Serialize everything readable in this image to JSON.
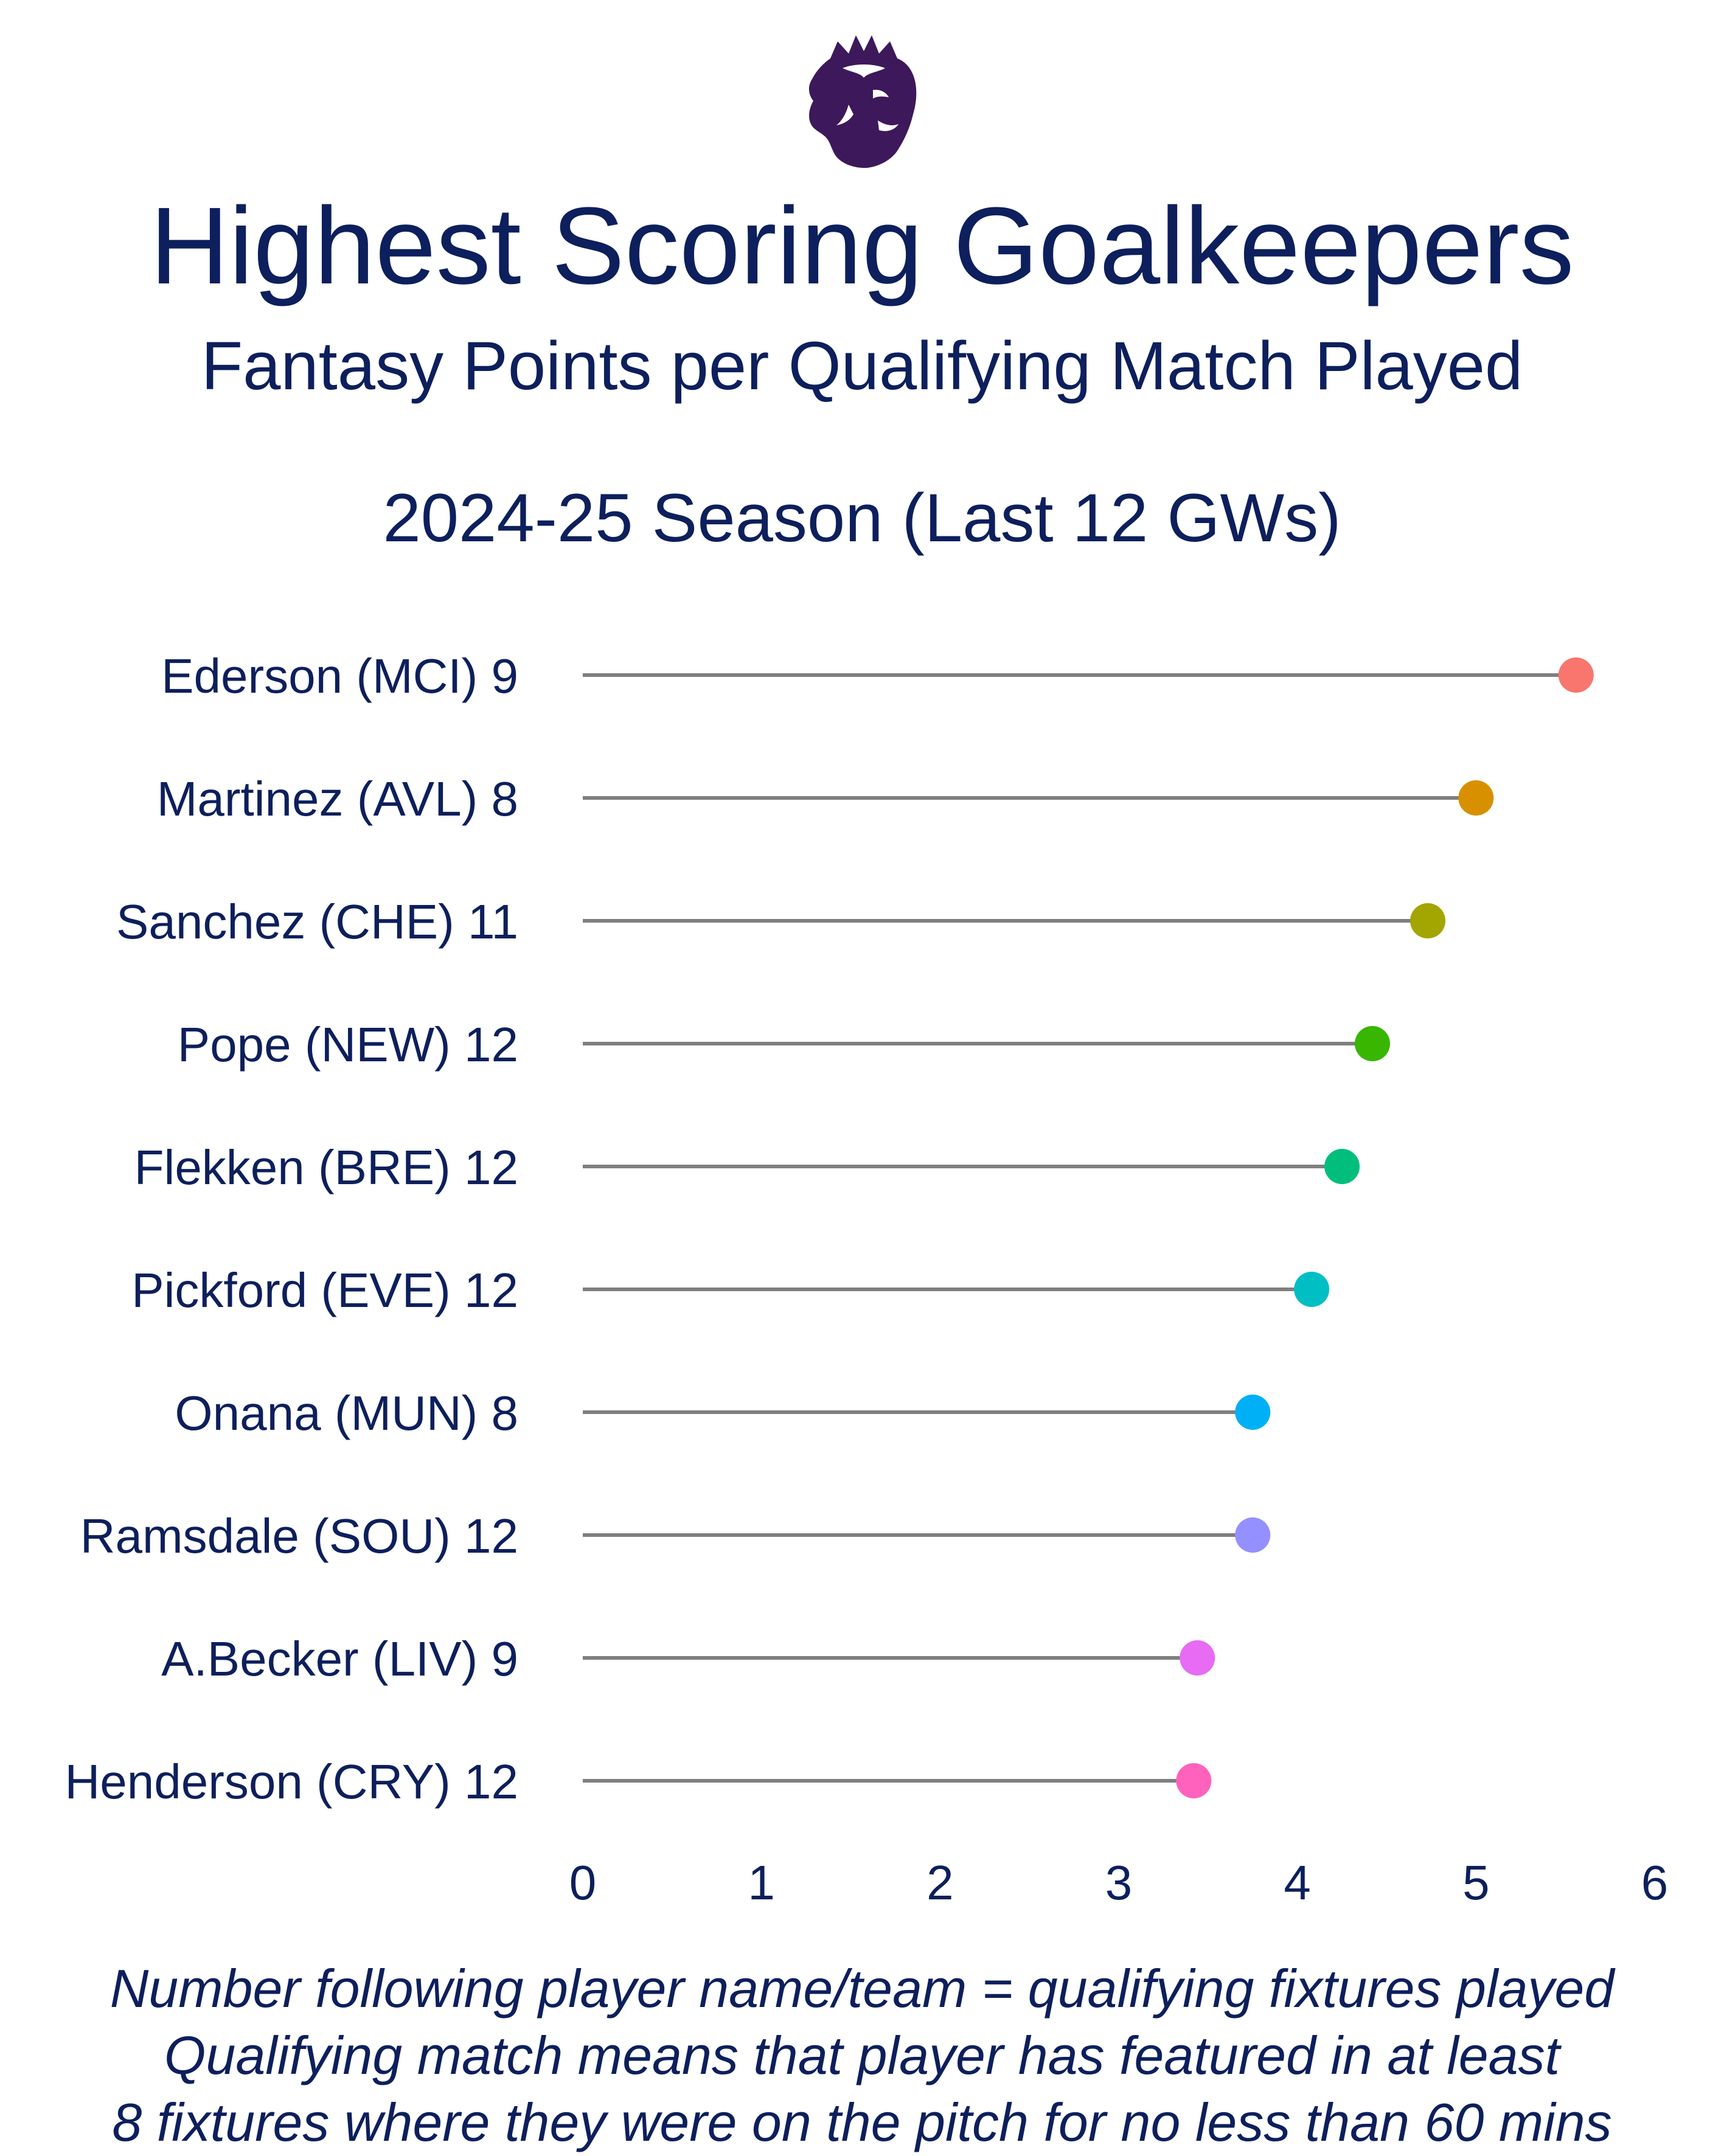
{
  "header": {
    "title": "Highest Scoring Goalkeepers",
    "subtitle": "Fantasy Points per Qualifying Match Played",
    "season": "2024-25 Season (Last 12 GWs)"
  },
  "logo": {
    "icon": "premier-league-lion-icon",
    "color": "#3d185b"
  },
  "chart_data": {
    "type": "lollipop",
    "categories": [
      "Ederson (MCI) 9",
      "Martinez (AVL) 8",
      "Sanchez (CHE) 11",
      "Pope (NEW) 12",
      "Flekken (BRE) 12",
      "Pickford (EVE) 12",
      "Onana (MUN) 8",
      "Ramsdale (SOU) 12",
      "A.Becker (LIV) 9",
      "Henderson (CRY) 12"
    ],
    "values": [
      5.56,
      5.0,
      4.73,
      4.42,
      4.25,
      4.08,
      3.75,
      3.75,
      3.44,
      3.42
    ],
    "colors": [
      "#f8766d",
      "#d89000",
      "#a3a500",
      "#39b600",
      "#00bf7d",
      "#00bfc4",
      "#00b0f6",
      "#9590ff",
      "#e76bf3",
      "#ff62bc"
    ],
    "stem_color": "#7f7f7f",
    "xlim": [
      0,
      6
    ],
    "xticks": [
      "0",
      "1",
      "2",
      "3",
      "4",
      "5",
      "6"
    ],
    "grid": false,
    "xlabel": "",
    "ylabel": ""
  },
  "notes": [
    "Number following player name/team = qualifying fixtures played",
    "Qualifying match means that player has featured in at least",
    "8 fixtures where they were on the pitch for no less than 60 mins"
  ]
}
